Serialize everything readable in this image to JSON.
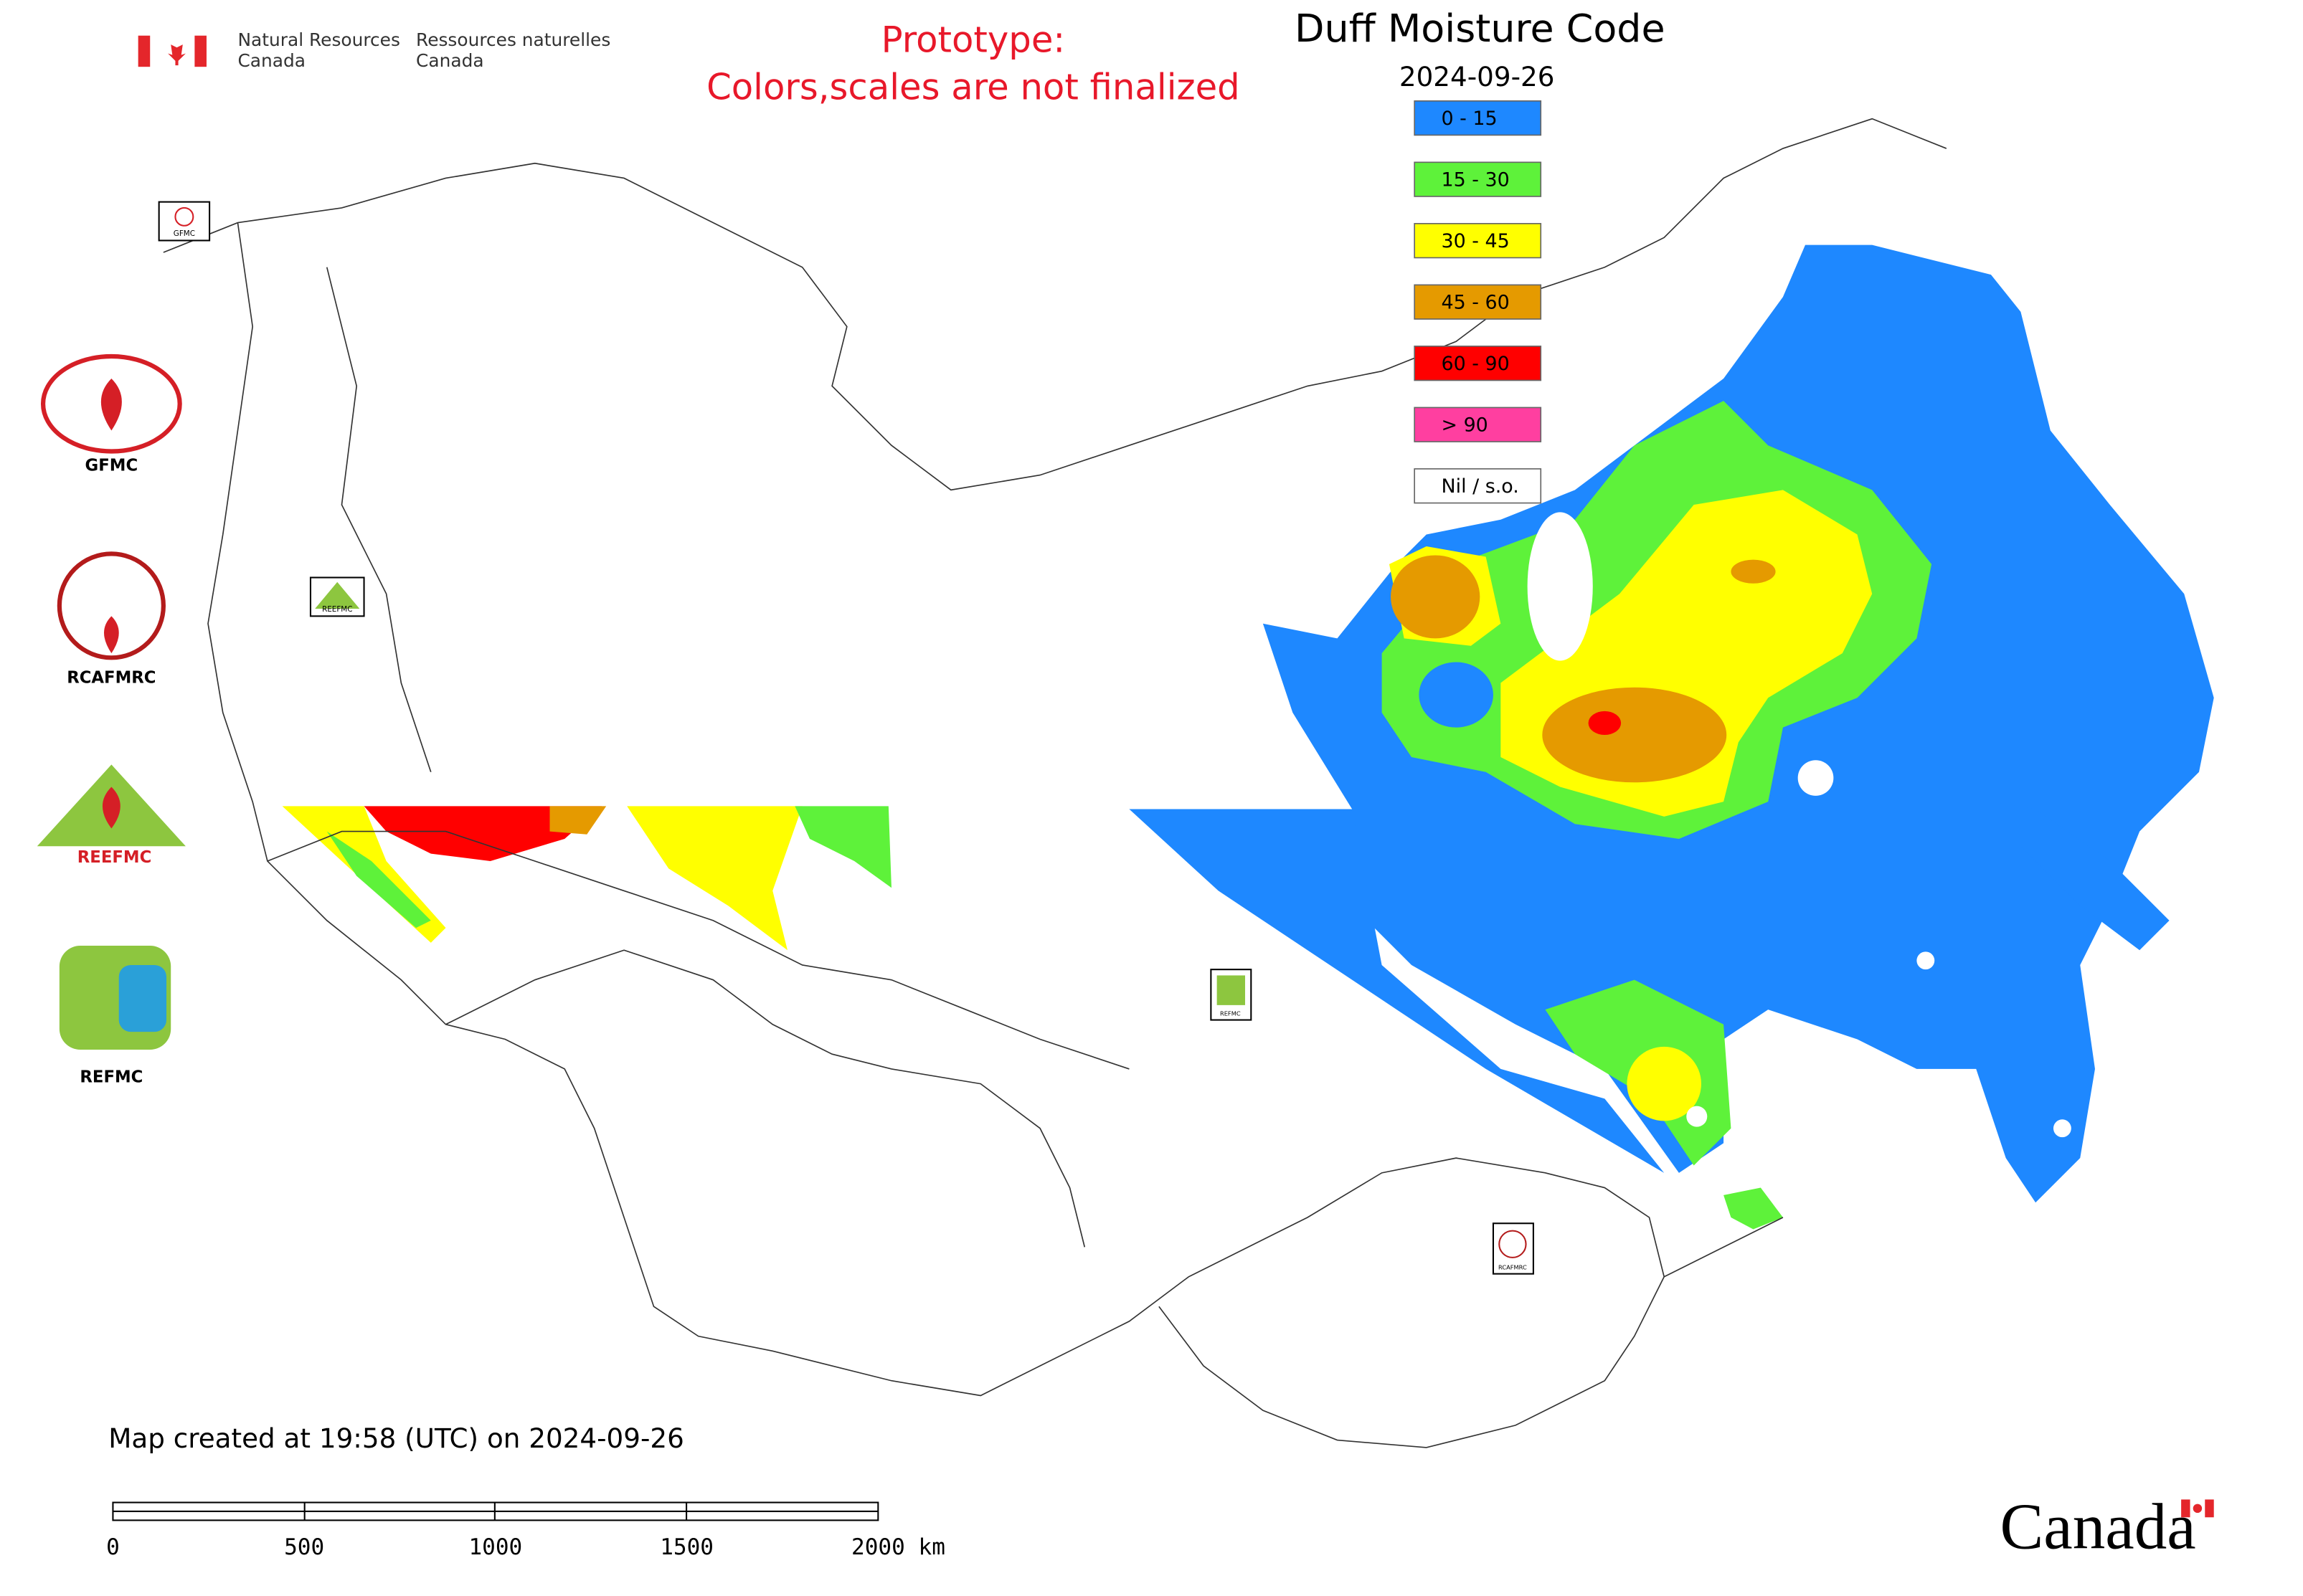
{
  "header": {
    "department_en": [
      "Natural Resources",
      "Canada"
    ],
    "department_fr": [
      "Ressources naturelles",
      "Canada"
    ]
  },
  "notice": [
    "Prototype:",
    "Colors,scales are not finalized"
  ],
  "title": "Duff Moisture Code",
  "date": "2024-09-26",
  "legend": [
    {
      "label": "0 - 15",
      "color": "#1e88ff"
    },
    {
      "label": "15 - 30",
      "color": "#5ef23a"
    },
    {
      "label": "30 - 45",
      "color": "#ffff00"
    },
    {
      "label": "45 - 60",
      "color": "#e59a00"
    },
    {
      "label": "60 - 90",
      "color": "#ff0000"
    },
    {
      "label": "> 90",
      "color": "#ff3fa0"
    },
    {
      "label": "Nil / s.o.",
      "color": "#ffffff"
    }
  ],
  "logos": [
    "GFMC",
    "RCAFMRC",
    "REEFMC",
    "REFMC"
  ],
  "map_markers": [
    "GFMC",
    "REEFMC",
    "REFMC",
    "RCAFMRC"
  ],
  "footer": {
    "created": "Map created at 19:58 (UTC) on 2024-09-26",
    "scale_labels": [
      "0",
      "500",
      "1000",
      "1500",
      "2000 km"
    ],
    "wordmark": "Canada"
  }
}
